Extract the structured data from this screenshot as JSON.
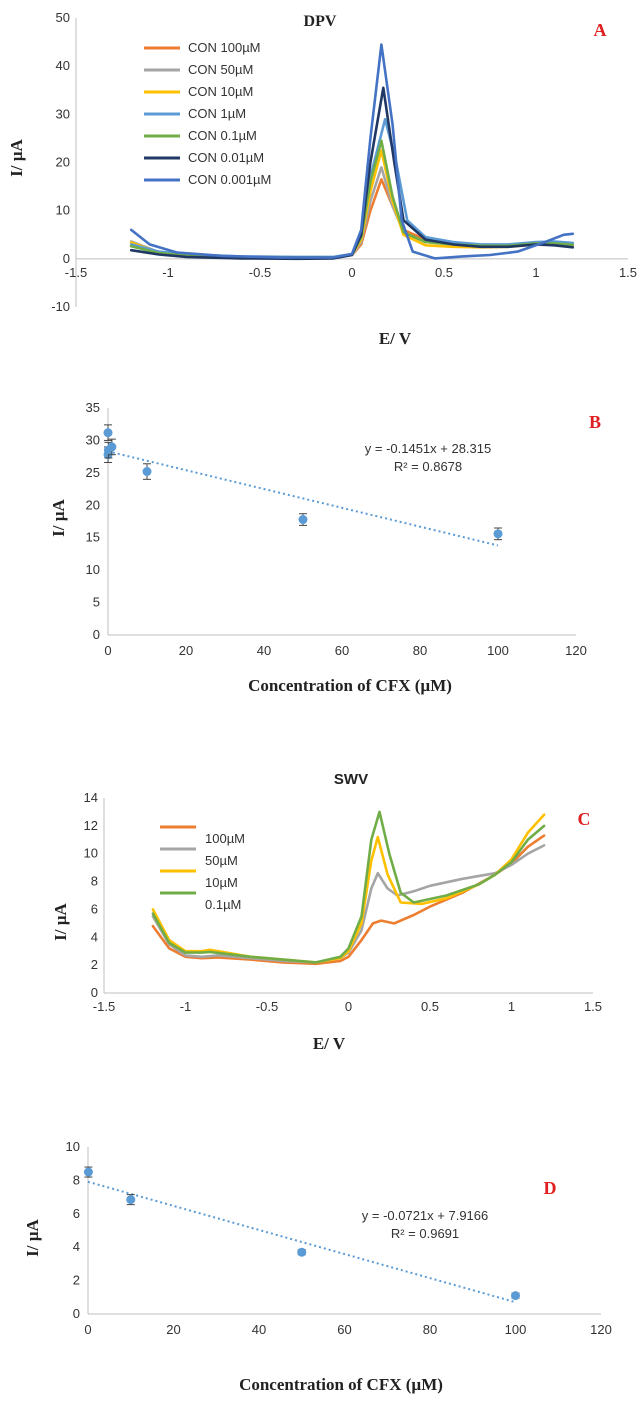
{
  "chart_data": [
    {
      "type": "line",
      "panel_letter": "A",
      "title": "DPV",
      "xlabel": "E/ V",
      "ylabel": "I/ µA",
      "xlim": [
        -1.5,
        1.5
      ],
      "ylim": [
        -10,
        50
      ],
      "x_ticks": [
        "-1.5",
        "-1",
        "-0.5",
        "0",
        "0.5",
        "1",
        "1.5"
      ],
      "y_ticks": [
        "-10",
        "0",
        "10",
        "20",
        "30",
        "40",
        "50"
      ],
      "legend_position": "top-left",
      "series": [
        {
          "name": "CON 100µM",
          "color": "#ed7d31",
          "points": [
            [
              -1.2,
              3.5
            ],
            [
              -1.05,
              1.3
            ],
            [
              -0.9,
              0.6
            ],
            [
              -0.6,
              0.3
            ],
            [
              -0.3,
              0.2
            ],
            [
              -0.1,
              0.3
            ],
            [
              0.0,
              0.8
            ],
            [
              0.05,
              3.0
            ],
            [
              0.1,
              10.0
            ],
            [
              0.16,
              16.5
            ],
            [
              0.22,
              11.0
            ],
            [
              0.28,
              6.0
            ],
            [
              0.4,
              4.0
            ],
            [
              0.55,
              3.0
            ],
            [
              0.7,
              2.6
            ],
            [
              0.85,
              2.8
            ],
            [
              1.0,
              3.2
            ],
            [
              1.1,
              3.3
            ],
            [
              1.2,
              3.0
            ]
          ]
        },
        {
          "name": "CON 50µM",
          "color": "#a5a5a5",
          "points": [
            [
              -1.2,
              3.6
            ],
            [
              -1.05,
              1.4
            ],
            [
              -0.9,
              0.9
            ],
            [
              -0.6,
              0.4
            ],
            [
              -0.3,
              0.3
            ],
            [
              -0.1,
              0.3
            ],
            [
              0.0,
              0.8
            ],
            [
              0.05,
              3.5
            ],
            [
              0.1,
              12.0
            ],
            [
              0.16,
              19.0
            ],
            [
              0.22,
              11.0
            ],
            [
              0.28,
              5.5
            ],
            [
              0.4,
              3.5
            ],
            [
              0.55,
              3.0
            ],
            [
              0.7,
              2.8
            ],
            [
              0.85,
              2.9
            ],
            [
              1.0,
              3.4
            ],
            [
              1.1,
              3.2
            ],
            [
              1.2,
              2.9
            ]
          ]
        },
        {
          "name": "CON 10µM",
          "color": "#ffc000",
          "points": [
            [
              -1.2,
              3.4
            ],
            [
              -1.05,
              1.3
            ],
            [
              -0.9,
              0.7
            ],
            [
              -0.6,
              0.3
            ],
            [
              -0.3,
              0.3
            ],
            [
              -0.1,
              0.3
            ],
            [
              0.0,
              0.9
            ],
            [
              0.05,
              4.0
            ],
            [
              0.1,
              14.0
            ],
            [
              0.16,
              22.5
            ],
            [
              0.22,
              12.0
            ],
            [
              0.28,
              5.0
            ],
            [
              0.4,
              2.8
            ],
            [
              0.55,
              2.5
            ],
            [
              0.7,
              2.4
            ],
            [
              0.85,
              2.5
            ],
            [
              1.0,
              3.0
            ],
            [
              1.1,
              3.1
            ],
            [
              1.2,
              2.8
            ]
          ]
        },
        {
          "name": "CON 1µM",
          "color": "#5b9bd5",
          "points": [
            [
              -1.2,
              3.0
            ],
            [
              -1.05,
              1.5
            ],
            [
              -0.9,
              0.9
            ],
            [
              -0.6,
              0.5
            ],
            [
              -0.3,
              0.4
            ],
            [
              -0.1,
              0.4
            ],
            [
              0.0,
              1.0
            ],
            [
              0.05,
              5.0
            ],
            [
              0.1,
              17.0
            ],
            [
              0.18,
              29.0
            ],
            [
              0.24,
              20.0
            ],
            [
              0.3,
              8.0
            ],
            [
              0.4,
              4.5
            ],
            [
              0.55,
              3.5
            ],
            [
              0.7,
              3.0
            ],
            [
              0.85,
              3.0
            ],
            [
              1.0,
              3.5
            ],
            [
              1.1,
              3.6
            ],
            [
              1.2,
              3.3
            ]
          ]
        },
        {
          "name": "CON 0.1µM",
          "color": "#70ad47",
          "points": [
            [
              -1.2,
              2.6
            ],
            [
              -1.05,
              1.2
            ],
            [
              -0.9,
              0.7
            ],
            [
              -0.6,
              0.4
            ],
            [
              -0.3,
              0.3
            ],
            [
              -0.1,
              0.3
            ],
            [
              0.0,
              0.9
            ],
            [
              0.05,
              4.5
            ],
            [
              0.1,
              16.0
            ],
            [
              0.16,
              24.5
            ],
            [
              0.22,
              13.0
            ],
            [
              0.28,
              5.5
            ],
            [
              0.4,
              3.5
            ],
            [
              0.55,
              3.0
            ],
            [
              0.7,
              2.7
            ],
            [
              0.85,
              2.7
            ],
            [
              1.0,
              3.2
            ],
            [
              1.1,
              3.2
            ],
            [
              1.2,
              2.9
            ]
          ]
        },
        {
          "name": "CON 0.01µM",
          "color": "#203864",
          "points": [
            [
              -1.2,
              1.8
            ],
            [
              -1.05,
              0.9
            ],
            [
              -0.9,
              0.4
            ],
            [
              -0.6,
              0.1
            ],
            [
              -0.3,
              0.0
            ],
            [
              -0.1,
              0.1
            ],
            [
              0.0,
              0.8
            ],
            [
              0.05,
              5.0
            ],
            [
              0.1,
              20.0
            ],
            [
              0.17,
              35.5
            ],
            [
              0.23,
              20.0
            ],
            [
              0.28,
              8.0
            ],
            [
              0.4,
              4.0
            ],
            [
              0.55,
              3.0
            ],
            [
              0.7,
              2.5
            ],
            [
              0.85,
              2.5
            ],
            [
              1.0,
              3.0
            ],
            [
              1.1,
              2.8
            ],
            [
              1.2,
              2.4
            ]
          ]
        },
        {
          "name": "CON 0.001µM",
          "color": "#4472c4",
          "points": [
            [
              -1.2,
              6.0
            ],
            [
              -1.1,
              3.0
            ],
            [
              -0.95,
              1.3
            ],
            [
              -0.7,
              0.6
            ],
            [
              -0.4,
              0.3
            ],
            [
              -0.1,
              0.3
            ],
            [
              0.0,
              1.0
            ],
            [
              0.05,
              6.0
            ],
            [
              0.1,
              25.0
            ],
            [
              0.16,
              44.5
            ],
            [
              0.22,
              28.0
            ],
            [
              0.27,
              8.0
            ],
            [
              0.33,
              1.5
            ],
            [
              0.45,
              0.1
            ],
            [
              0.6,
              0.5
            ],
            [
              0.75,
              0.8
            ],
            [
              0.9,
              1.5
            ],
            [
              1.05,
              3.5
            ],
            [
              1.15,
              5.0
            ],
            [
              1.2,
              5.2
            ]
          ]
        }
      ]
    },
    {
      "type": "scatter",
      "panel_letter": "B",
      "xlabel": "Concentration of CFX (µM)",
      "ylabel": "I/ µA",
      "xlim": [
        0,
        120
      ],
      "ylim": [
        0,
        35
      ],
      "x_ticks": [
        "0",
        "20",
        "40",
        "60",
        "80",
        "100",
        "120"
      ],
      "y_ticks": [
        "0",
        "5",
        "10",
        "15",
        "20",
        "25",
        "30",
        "35"
      ],
      "equation": "y = -0.1451x + 28.315",
      "r_squared": "R² = 0.8678",
      "trendline": {
        "slope": -0.1451,
        "intercept": 28.315,
        "x_from": 0,
        "x_to": 100
      },
      "points": [
        {
          "x": 0.001,
          "y": 31.2,
          "err": 1.2
        },
        {
          "x": 0.01,
          "y": 27.8,
          "err": 1.2
        },
        {
          "x": 0.1,
          "y": 28.5,
          "err": 1.2
        },
        {
          "x": 1,
          "y": 29.0,
          "err": 1.2
        },
        {
          "x": 10,
          "y": 25.2,
          "err": 1.2
        },
        {
          "x": 50,
          "y": 17.8,
          "err": 0.9
        },
        {
          "x": 100,
          "y": 15.6,
          "err": 0.9
        }
      ],
      "marker_color": "#5b9bd5"
    },
    {
      "type": "line",
      "panel_letter": "C",
      "title": "SWV",
      "xlabel": "E/ V",
      "ylabel": "I/ µA",
      "xlim": [
        -1.5,
        1.5
      ],
      "ylim": [
        0,
        14
      ],
      "x_ticks": [
        "-1.5",
        "-1",
        "-0.5",
        "0",
        "0.5",
        "1",
        "1.5"
      ],
      "y_ticks": [
        "0",
        "2",
        "4",
        "6",
        "8",
        "10",
        "12",
        "14"
      ],
      "legend_position": "top-left",
      "series": [
        {
          "name": "100µM",
          "color": "#ed7d31",
          "points": [
            [
              -1.2,
              4.8
            ],
            [
              -1.1,
              3.2
            ],
            [
              -1.0,
              2.6
            ],
            [
              -0.9,
              2.5
            ],
            [
              -0.8,
              2.55
            ],
            [
              -0.6,
              2.4
            ],
            [
              -0.4,
              2.2
            ],
            [
              -0.2,
              2.1
            ],
            [
              -0.05,
              2.3
            ],
            [
              0.0,
              2.6
            ],
            [
              0.08,
              3.8
            ],
            [
              0.15,
              5.0
            ],
            [
              0.2,
              5.2
            ],
            [
              0.28,
              5.0
            ],
            [
              0.4,
              5.6
            ],
            [
              0.5,
              6.2
            ],
            [
              0.7,
              7.2
            ],
            [
              0.9,
              8.5
            ],
            [
              1.0,
              9.3
            ],
            [
              1.1,
              10.5
            ],
            [
              1.2,
              11.3
            ]
          ]
        },
        {
          "name": "50µM",
          "color": "#a5a5a5",
          "points": [
            [
              -1.2,
              5.5
            ],
            [
              -1.1,
              3.5
            ],
            [
              -1.0,
              2.7
            ],
            [
              -0.9,
              2.6
            ],
            [
              -0.8,
              2.7
            ],
            [
              -0.6,
              2.5
            ],
            [
              -0.4,
              2.3
            ],
            [
              -0.2,
              2.2
            ],
            [
              -0.05,
              2.5
            ],
            [
              0.0,
              2.9
            ],
            [
              0.08,
              4.5
            ],
            [
              0.14,
              7.5
            ],
            [
              0.18,
              8.6
            ],
            [
              0.24,
              7.5
            ],
            [
              0.3,
              7.0
            ],
            [
              0.4,
              7.3
            ],
            [
              0.5,
              7.7
            ],
            [
              0.7,
              8.2
            ],
            [
              0.9,
              8.6
            ],
            [
              1.0,
              9.2
            ],
            [
              1.1,
              10.0
            ],
            [
              1.2,
              10.6
            ]
          ]
        },
        {
          "name": "10µM",
          "color": "#ffc000",
          "points": [
            [
              -1.2,
              6.0
            ],
            [
              -1.1,
              3.8
            ],
            [
              -1.0,
              3.0
            ],
            [
              -0.9,
              3.0
            ],
            [
              -0.85,
              3.1
            ],
            [
              -0.6,
              2.6
            ],
            [
              -0.4,
              2.4
            ],
            [
              -0.2,
              2.2
            ],
            [
              -0.05,
              2.5
            ],
            [
              0.0,
              3.0
            ],
            [
              0.08,
              5.0
            ],
            [
              0.14,
              9.5
            ],
            [
              0.18,
              11.2
            ],
            [
              0.24,
              8.5
            ],
            [
              0.32,
              6.5
            ],
            [
              0.45,
              6.4
            ],
            [
              0.6,
              6.8
            ],
            [
              0.8,
              7.8
            ],
            [
              0.9,
              8.5
            ],
            [
              1.0,
              9.6
            ],
            [
              1.1,
              11.5
            ],
            [
              1.2,
              12.8
            ]
          ]
        },
        {
          "name": "0.1µM",
          "color": "#70ad47",
          "points": [
            [
              -1.2,
              5.7
            ],
            [
              -1.1,
              3.6
            ],
            [
              -1.0,
              2.9
            ],
            [
              -0.9,
              2.9
            ],
            [
              -0.85,
              2.95
            ],
            [
              -0.6,
              2.6
            ],
            [
              -0.4,
              2.4
            ],
            [
              -0.2,
              2.2
            ],
            [
              -0.05,
              2.6
            ],
            [
              0.0,
              3.2
            ],
            [
              0.08,
              5.5
            ],
            [
              0.14,
              11.0
            ],
            [
              0.19,
              13.0
            ],
            [
              0.25,
              10.0
            ],
            [
              0.32,
              7.2
            ],
            [
              0.4,
              6.5
            ],
            [
              0.6,
              7.0
            ],
            [
              0.8,
              7.8
            ],
            [
              0.9,
              8.5
            ],
            [
              1.0,
              9.4
            ],
            [
              1.1,
              11.0
            ],
            [
              1.2,
              12.0
            ]
          ]
        }
      ]
    },
    {
      "type": "scatter",
      "panel_letter": "D",
      "xlabel": "Concentration of CFX (µM)",
      "ylabel": "I/ µA",
      "xlim": [
        0,
        120
      ],
      "ylim": [
        0,
        10
      ],
      "x_ticks": [
        "0",
        "20",
        "40",
        "60",
        "80",
        "100",
        "120"
      ],
      "y_ticks": [
        "0",
        "2",
        "4",
        "6",
        "8",
        "10"
      ],
      "equation": "y = -0.0721x + 7.9166",
      "r_squared": "R² = 0.9691",
      "trendline": {
        "slope": -0.0721,
        "intercept": 7.9166,
        "x_from": 0,
        "x_to": 100
      },
      "points": [
        {
          "x": 0.1,
          "y": 8.5,
          "err": 0.3
        },
        {
          "x": 10,
          "y": 6.85,
          "err": 0.3
        },
        {
          "x": 50,
          "y": 3.7,
          "err": 0.15
        },
        {
          "x": 100,
          "y": 1.1,
          "err": 0.15
        }
      ],
      "marker_color": "#5b9bd5"
    }
  ]
}
